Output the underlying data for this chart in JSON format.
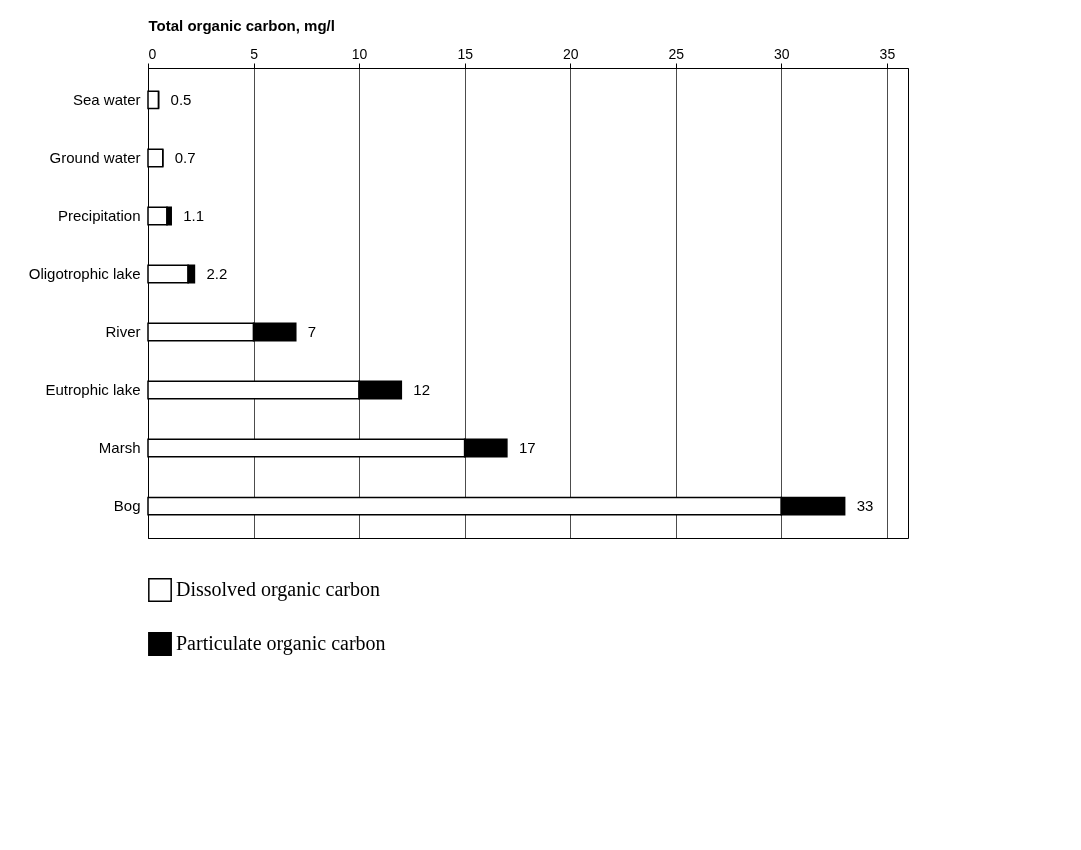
{
  "chart_data": {
    "type": "bar",
    "orientation": "horizontal",
    "stacked": true,
    "xlabel": "Total organic carbon, mg/l",
    "categories": [
      "Sea water",
      "Ground water",
      "Precipitation",
      "Oligotrophic lake",
      "River",
      "Eutrophic lake",
      "Marsh",
      "Bog"
    ],
    "series": [
      {
        "name": "Dissolved organic carbon",
        "color": "#ffffff",
        "values": [
          0.5,
          0.7,
          0.9,
          1.9,
          5,
          10,
          15,
          30
        ]
      },
      {
        "name": "Particulate organic carbon",
        "color": "#000000",
        "values": [
          0,
          0,
          0.2,
          0.3,
          2,
          2,
          2,
          3
        ]
      }
    ],
    "totals": [
      "0.5",
      "0.7",
      "1.1",
      "2.2",
      "7",
      "12",
      "17",
      "33"
    ],
    "xlim": [
      0,
      36
    ],
    "xticks": [
      0,
      5,
      10,
      15,
      20,
      25,
      30,
      35
    ],
    "grid": "x",
    "legend": "bottom"
  }
}
